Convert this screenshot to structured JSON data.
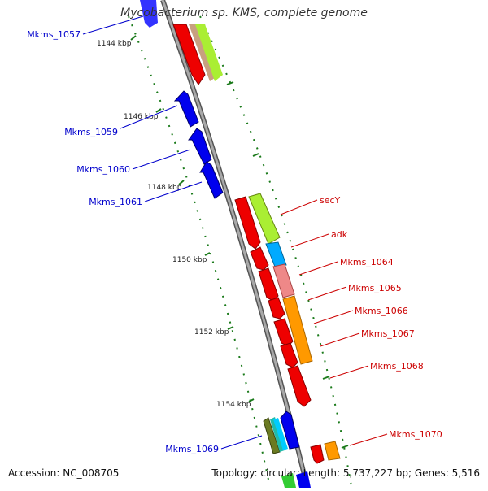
{
  "title": "Mycobacterium sp. KMS, complete genome",
  "footer": {
    "accession": "Accession: NC_008705",
    "summary": "Topology: circular; Length: 5,737,227 bp; Genes: 5,516"
  },
  "ticks": [
    "1144 kbp",
    "1146 kbp",
    "1148 kbp",
    "1150 kbp",
    "1152 kbp",
    "1154 kbp"
  ],
  "genes_left": [
    "Mkms_1057",
    "Mkms_1059",
    "Mkms_1060",
    "Mkms_1061",
    "Mkms_1069"
  ],
  "genes_right": [
    "secY",
    "adk",
    "Mkms_1064",
    "Mkms_1065",
    "Mkms_1066",
    "Mkms_1067",
    "Mkms_1068",
    "Mkms_1070"
  ],
  "colors": {
    "reverse_strand": "#0000ee",
    "forward_strand": "#ee0000",
    "backbone": "#8a8a8a",
    "tick": "#1a7a1a",
    "label_left": "#0000cc",
    "label_right": "#cc0000"
  }
}
